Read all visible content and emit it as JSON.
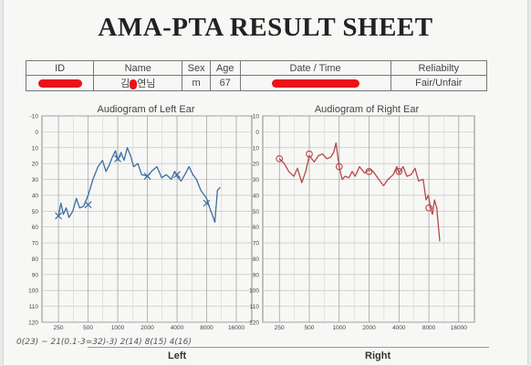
{
  "title": "AMA-PTA RESULT SHEET",
  "info_table": {
    "headers": [
      "ID",
      "Name",
      "Sex",
      "Age",
      "Date / Time",
      "Reliabilty"
    ],
    "values": {
      "name_part1": "김",
      "name_part2": "연님",
      "sex": "m",
      "age": "67",
      "reliability": "Fair/Unfair"
    }
  },
  "colors": {
    "redaction": "#e8141a",
    "left_ear": "#3a6ea5",
    "right_ear": "#b5484a"
  },
  "chart_data": [
    {
      "type": "line",
      "title": "Audiogram of Left Ear",
      "x_ticks": [
        "250",
        "500",
        "1000",
        "2000",
        "4000",
        "8000",
        "16000"
      ],
      "y_ticks": [
        "-10",
        "0",
        "10",
        "20",
        "30",
        "40",
        "50",
        "60",
        "70",
        "80",
        "90",
        "100",
        "110",
        "120"
      ],
      "ylim": [
        120,
        -10
      ],
      "grid": true,
      "series": [
        {
          "symbol": "x",
          "points": [
            [
              250,
              53
            ],
            [
              265,
              45
            ],
            [
              280,
              52
            ],
            [
              300,
              48
            ],
            [
              320,
              54
            ],
            [
              350,
              50
            ],
            [
              380,
              42
            ],
            [
              410,
              48
            ],
            [
              450,
              47
            ],
            [
              500,
              40
            ],
            [
              560,
              30
            ],
            [
              630,
              22
            ],
            [
              700,
              18
            ],
            [
              760,
              25
            ],
            [
              820,
              21
            ],
            [
              880,
              16
            ],
            [
              950,
              12
            ],
            [
              1000,
              18
            ],
            [
              1080,
              13
            ],
            [
              1160,
              18
            ],
            [
              1250,
              10
            ],
            [
              1350,
              15
            ],
            [
              1450,
              22
            ],
            [
              1600,
              20
            ],
            [
              1750,
              27
            ],
            [
              2000,
              28
            ],
            [
              2200,
              25
            ],
            [
              2500,
              22
            ],
            [
              2800,
              29
            ],
            [
              3100,
              27
            ],
            [
              3500,
              30
            ],
            [
              3800,
              25
            ],
            [
              4000,
              28
            ],
            [
              4400,
              31
            ],
            [
              4800,
              27
            ],
            [
              5300,
              22
            ],
            [
              5800,
              27
            ],
            [
              6300,
              30
            ],
            [
              7000,
              37
            ],
            [
              8000,
              42
            ],
            [
              8600,
              48
            ],
            [
              9200,
              53
            ],
            [
              9700,
              57
            ],
            [
              10300,
              37
            ],
            [
              11000,
              35
            ]
          ],
          "markers": [
            [
              250,
              53
            ],
            [
              500,
              46
            ],
            [
              1000,
              17
            ],
            [
              2000,
              28
            ],
            [
              4000,
              27
            ],
            [
              8000,
              45
            ]
          ]
        }
      ]
    },
    {
      "type": "line",
      "title": "Audiogram of Right Ear",
      "x_ticks": [
        "250",
        "500",
        "1000",
        "2000",
        "4000",
        "8000",
        "16000"
      ],
      "y_ticks": [
        "-10",
        "0",
        "10",
        "20",
        "30",
        "40",
        "50",
        "60",
        "70",
        "80",
        "90",
        "100",
        "110",
        "120"
      ],
      "ylim": [
        120,
        -10
      ],
      "grid": true,
      "series": [
        {
          "symbol": "o",
          "points": [
            [
              250,
              17
            ],
            [
              280,
              20
            ],
            [
              310,
              25
            ],
            [
              350,
              28
            ],
            [
              380,
              23
            ],
            [
              420,
              32
            ],
            [
              460,
              25
            ],
            [
              500,
              15
            ],
            [
              560,
              19
            ],
            [
              620,
              15
            ],
            [
              680,
              14
            ],
            [
              750,
              17
            ],
            [
              820,
              16
            ],
            [
              880,
              13
            ],
            [
              930,
              7
            ],
            [
              1000,
              22
            ],
            [
              1070,
              30
            ],
            [
              1150,
              28
            ],
            [
              1250,
              29
            ],
            [
              1350,
              25
            ],
            [
              1450,
              28
            ],
            [
              1600,
              22
            ],
            [
              1800,
              26
            ],
            [
              2000,
              24
            ],
            [
              2200,
              25
            ],
            [
              2500,
              30
            ],
            [
              2800,
              34
            ],
            [
              3100,
              30
            ],
            [
              3500,
              27
            ],
            [
              3800,
              22
            ],
            [
              4000,
              26
            ],
            [
              4400,
              22
            ],
            [
              4800,
              28
            ],
            [
              5300,
              27
            ],
            [
              5800,
              23
            ],
            [
              6300,
              31
            ],
            [
              7000,
              30
            ],
            [
              7500,
              43
            ],
            [
              7900,
              40
            ],
            [
              8300,
              48
            ],
            [
              8700,
              52
            ],
            [
              9100,
              43
            ],
            [
              9600,
              48
            ],
            [
              10300,
              69
            ]
          ],
          "markers": [
            [
              250,
              17
            ],
            [
              500,
              14
            ],
            [
              1000,
              22
            ],
            [
              2000,
              25
            ],
            [
              4000,
              25
            ],
            [
              8000,
              48
            ]
          ]
        }
      ]
    }
  ],
  "bottom": {
    "left_label": "Left",
    "right_label": "Right"
  },
  "handwritten_note": "0(23)   ~ 21(0.1-3=32)-3) 2(14)  8(15)   4(16)"
}
